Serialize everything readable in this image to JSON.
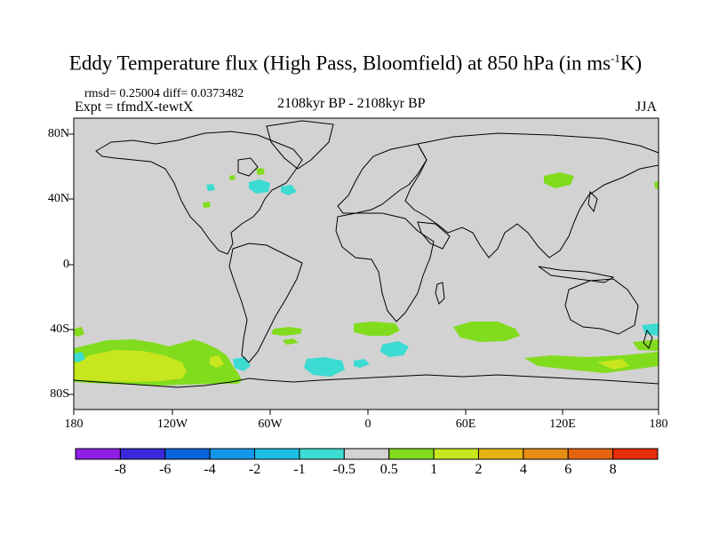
{
  "title": {
    "main": "Eddy Temperature flux (High Pass, Bloomfield) at 850 hPa (in ms",
    "sup": "-1",
    "end": "K)"
  },
  "stats": "rmsd= 0.25004 diff= 0.0373482",
  "experiment": "Expt = tfmdX-tewtX",
  "period": "2108kyr BP - 2108kyr BP",
  "season": "JJA",
  "lat_labels": [
    "80N",
    "40N",
    "0",
    "40S",
    "80S"
  ],
  "lon_labels": [
    "180",
    "120W",
    "60W",
    "0",
    "60E",
    "120E",
    "180"
  ],
  "colorbar": {
    "labels": [
      "-8",
      "-6",
      "-4",
      "-2",
      "-1",
      "-0.5",
      "0.5",
      "1",
      "2",
      "4",
      "6",
      "8"
    ],
    "colors": [
      "#8f1ee6",
      "#3c28dc",
      "#0a64dc",
      "#1496e6",
      "#1ebee6",
      "#3cdcd2",
      "#d2d2d2",
      "#82dc1e",
      "#c8e61e",
      "#e6b414",
      "#e68c14",
      "#e6640f",
      "#e62d0a"
    ]
  },
  "map": {
    "background_color": "#d2d2d2"
  }
}
